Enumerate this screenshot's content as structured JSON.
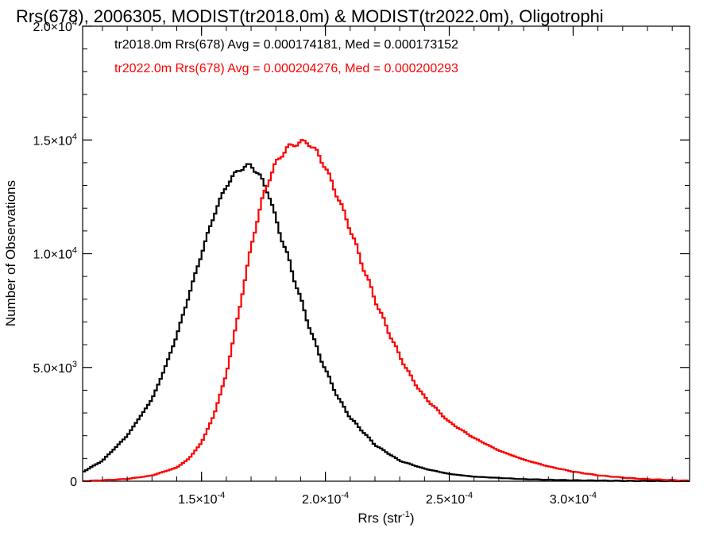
{
  "chart_data": {
    "type": "histogram",
    "title": "Rrs(678), 2006305, MODIST(tr2018.0m) & MODIST(tr2022.0m), Oligotrophi",
    "xlabel_main": "Rrs (str",
    "xlabel_sup": "-1",
    "xlabel_end": ")",
    "ylabel": "Number of Observations",
    "xlim": [
      0.000102,
      0.000347
    ],
    "ylim": [
      0,
      20000
    ],
    "x_ticks": [
      {
        "value": 0.00015,
        "mant": "1.5",
        "exp": "-4"
      },
      {
        "value": 0.0002,
        "mant": "2.0",
        "exp": "-4"
      },
      {
        "value": 0.00025,
        "mant": "2.5",
        "exp": "-4"
      },
      {
        "value": 0.0003,
        "mant": "3.0",
        "exp": "-4"
      }
    ],
    "y_ticks": [
      {
        "value": 0,
        "mant": "0",
        "exp": ""
      },
      {
        "value": 5000,
        "mant": "5.0",
        "exp": "3"
      },
      {
        "value": 10000,
        "mant": "1.0",
        "exp": "4"
      },
      {
        "value": 15000,
        "mant": "1.5",
        "exp": "4"
      },
      {
        "value": 20000,
        "mant": "2.0",
        "exp": "4"
      }
    ],
    "annotations": [
      {
        "text": "tr2018.0m Rrs(678) Avg = 0.000174181, Med = 0.000173152",
        "color": "#000000"
      },
      {
        "text": "tr2022.0m Rrs(678) Avg = 0.000204276, Med = 0.000200293",
        "color": "#ff0000"
      }
    ],
    "series": [
      {
        "color": "#000000",
        "x": [
          0.000102,
          0.00011,
          0.00012,
          0.00013,
          0.000135,
          0.00014,
          0.000145,
          0.00015,
          0.000155,
          0.00016,
          0.000165,
          0.00017,
          0.000173,
          0.000177,
          0.00018,
          0.000185,
          0.00019,
          0.000195,
          0.0002,
          0.000205,
          0.00021,
          0.00022,
          0.00023,
          0.00024,
          0.00025,
          0.00026,
          0.00028,
          0.0003,
          0.00032,
          0.000347
        ],
        "y": [
          400,
          900,
          2000,
          3600,
          4900,
          6400,
          8200,
          10000,
          11700,
          13000,
          13700,
          13900,
          13500,
          12700,
          11500,
          9800,
          8000,
          6300,
          4900,
          3700,
          2800,
          1600,
          900,
          550,
          320,
          200,
          90,
          40,
          15,
          5
        ]
      },
      {
        "color": "#ff0000",
        "x": [
          0.000102,
          0.00012,
          0.00013,
          0.00014,
          0.000145,
          0.00015,
          0.000155,
          0.00016,
          0.000165,
          0.00017,
          0.000175,
          0.00018,
          0.000185,
          0.00019,
          0.000193,
          0.000197,
          0.0002,
          0.000205,
          0.00021,
          0.000215,
          0.00022,
          0.000225,
          0.00023,
          0.000235,
          0.00024,
          0.00025,
          0.00026,
          0.00027,
          0.00028,
          0.00029,
          0.0003,
          0.00031,
          0.00032,
          0.00033,
          0.000347
        ],
        "y": [
          0,
          100,
          250,
          600,
          1000,
          1700,
          2900,
          4700,
          7400,
          10300,
          12600,
          14000,
          14700,
          14900,
          14900,
          14400,
          13800,
          12500,
          11100,
          9500,
          8000,
          6700,
          5500,
          4500,
          3700,
          2600,
          1900,
          1350,
          950,
          650,
          420,
          260,
          160,
          90,
          20
        ]
      }
    ]
  }
}
